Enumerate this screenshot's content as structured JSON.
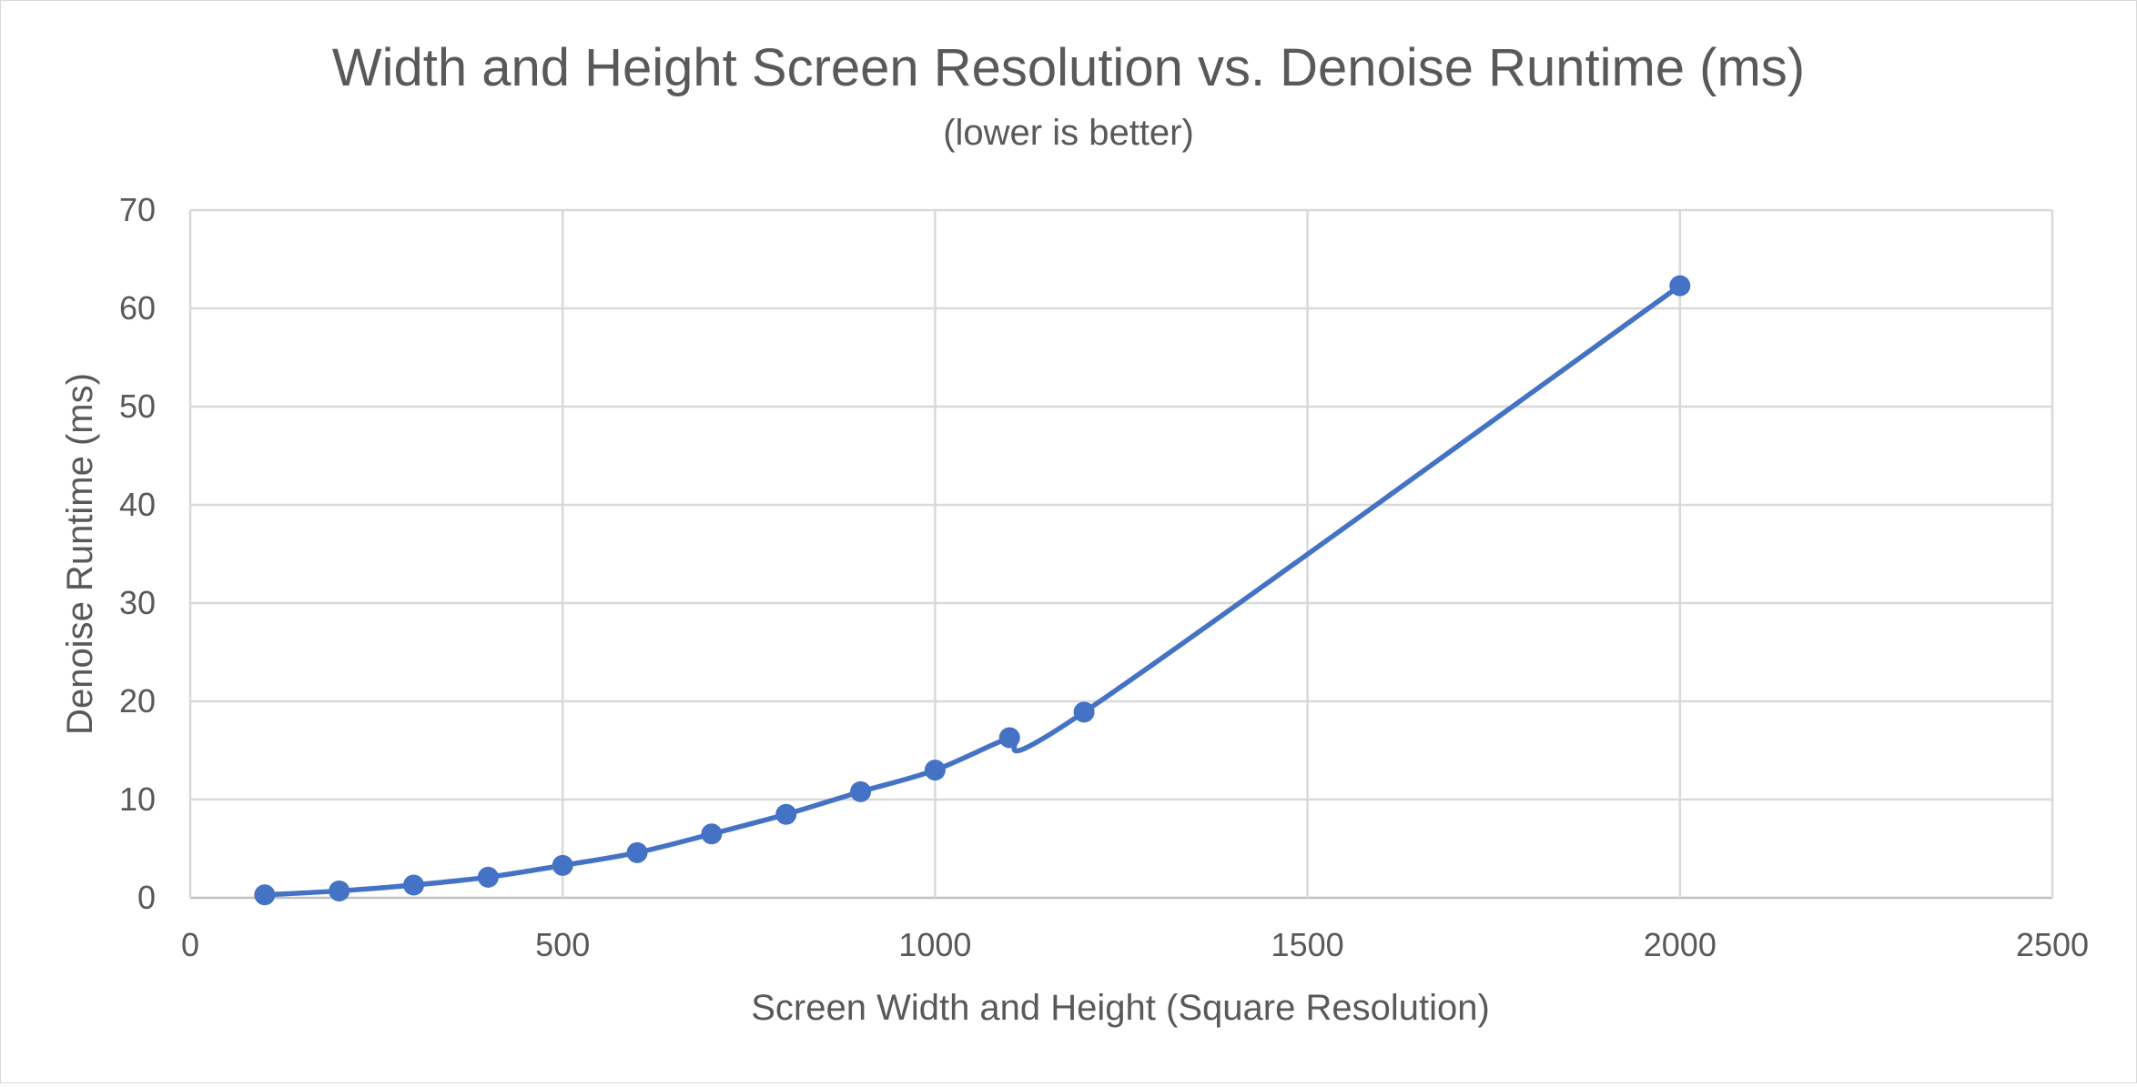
{
  "chart_data": {
    "type": "scatter",
    "title": "Width and Height Screen Resolution vs. Denoise Runtime (ms)",
    "subtitle": "(lower is better)",
    "xlabel": "Screen Width and Height (Square Resolution)",
    "ylabel": "Denoise Runtime (ms)",
    "xlim": [
      0,
      2500
    ],
    "ylim": [
      0,
      70
    ],
    "xticks": [
      0,
      500,
      1000,
      1500,
      2000,
      2500
    ],
    "yticks": [
      0,
      10,
      20,
      30,
      40,
      50,
      60,
      70
    ],
    "grid": true,
    "legend": "none",
    "smoothed_line": true,
    "series": [
      {
        "color": "#4472c4",
        "x": [
          100,
          200,
          300,
          400,
          500,
          600,
          700,
          800,
          900,
          1000,
          1100,
          1200,
          2000
        ],
        "y": [
          0.3,
          0.7,
          1.3,
          2.1,
          3.3,
          4.6,
          6.5,
          8.5,
          10.8,
          13.0,
          16.3,
          18.9,
          62.3
        ]
      }
    ]
  }
}
